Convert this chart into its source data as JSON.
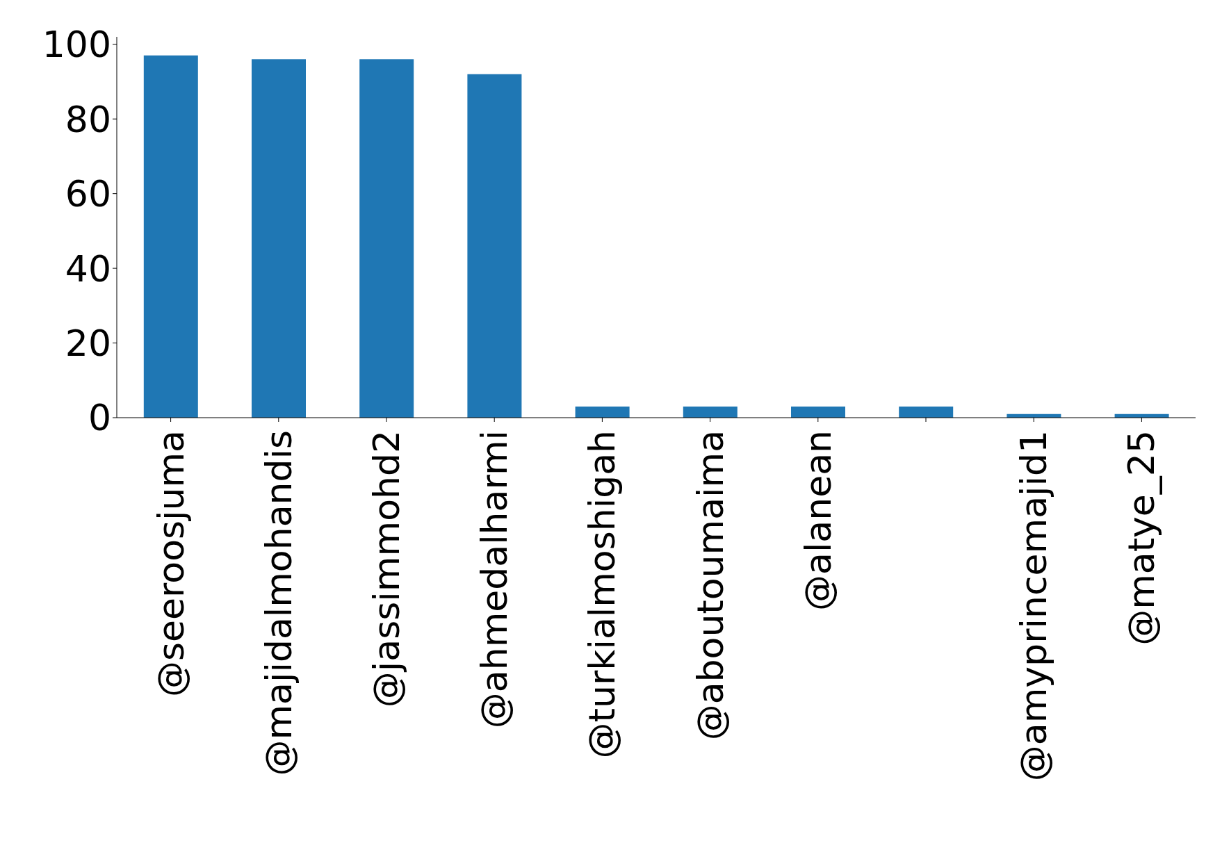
{
  "chart_data": {
    "type": "bar",
    "categories": [
      "@seeroosjuma",
      "@majidalmohandis",
      "@jassimmohd2",
      "@ahmedalharmi",
      "@turkialmoshigah",
      "@aboutoumaima",
      "@alanean",
      null,
      "@amyprincemajid1",
      "@matye_25"
    ],
    "values": [
      97,
      96,
      96,
      92,
      3,
      3,
      3,
      3,
      1,
      1
    ],
    "color": "#1f77b4",
    "ylim": [
      0,
      102
    ],
    "yticks": [
      0,
      20,
      40,
      60,
      80,
      100
    ],
    "grid": false,
    "legend": false
  }
}
